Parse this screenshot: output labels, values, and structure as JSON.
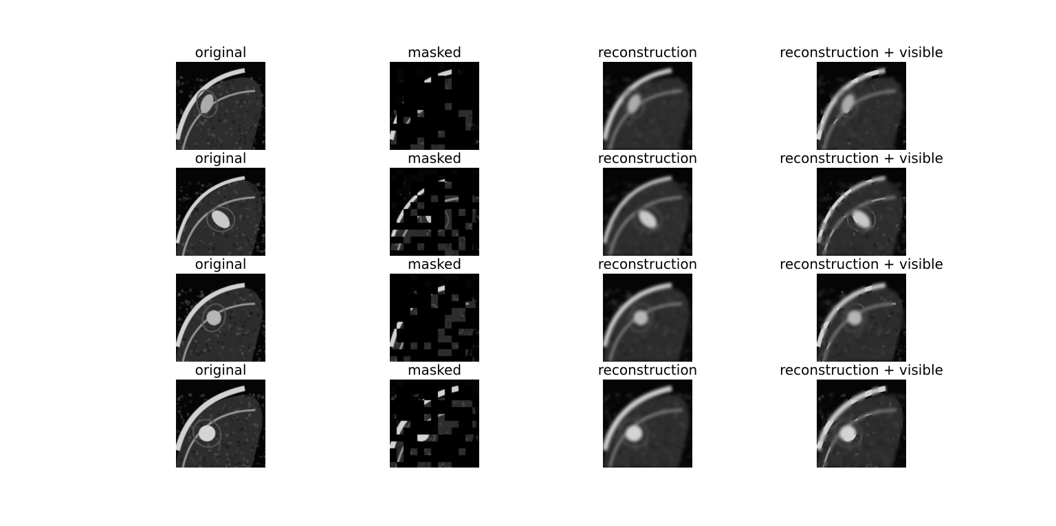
{
  "figure": {
    "column_titles": [
      "original",
      "masked",
      "reconstruction",
      "reconstruction + visible"
    ],
    "colormap": "grayscale",
    "background_color": "#ffffff",
    "rows": [
      {
        "panels": [
          {
            "title": "original",
            "content": "cardiac MRI short-axis slice"
          },
          {
            "title": "masked",
            "content": "sparse visible patches on black"
          },
          {
            "title": "reconstruction",
            "content": "blurred reconstructed slice"
          },
          {
            "title": "reconstruction + visible",
            "content": "reconstruction with visible patches pasted in"
          }
        ]
      },
      {
        "panels": [
          {
            "title": "original",
            "content": "cardiac MRI short-axis slice"
          },
          {
            "title": "masked",
            "content": "sparse visible patches on black"
          },
          {
            "title": "reconstruction",
            "content": "blurred reconstructed slice"
          },
          {
            "title": "reconstruction + visible",
            "content": "reconstruction with visible patches pasted in"
          }
        ]
      },
      {
        "panels": [
          {
            "title": "original",
            "content": "cardiac MRI short-axis slice"
          },
          {
            "title": "masked",
            "content": "sparse visible patches on black"
          },
          {
            "title": "reconstruction",
            "content": "blurred reconstructed slice"
          },
          {
            "title": "reconstruction + visible",
            "content": "reconstruction with visible patches pasted in"
          }
        ]
      },
      {
        "panels": [
          {
            "title": "original",
            "content": "cardiac MRI short-axis slice"
          },
          {
            "title": "masked",
            "content": "sparse visible patches on black"
          },
          {
            "title": "reconstruction",
            "content": "blurred reconstructed slice"
          },
          {
            "title": "reconstruction + visible",
            "content": "reconstruction with visible patches pasted in"
          }
        ]
      }
    ]
  }
}
